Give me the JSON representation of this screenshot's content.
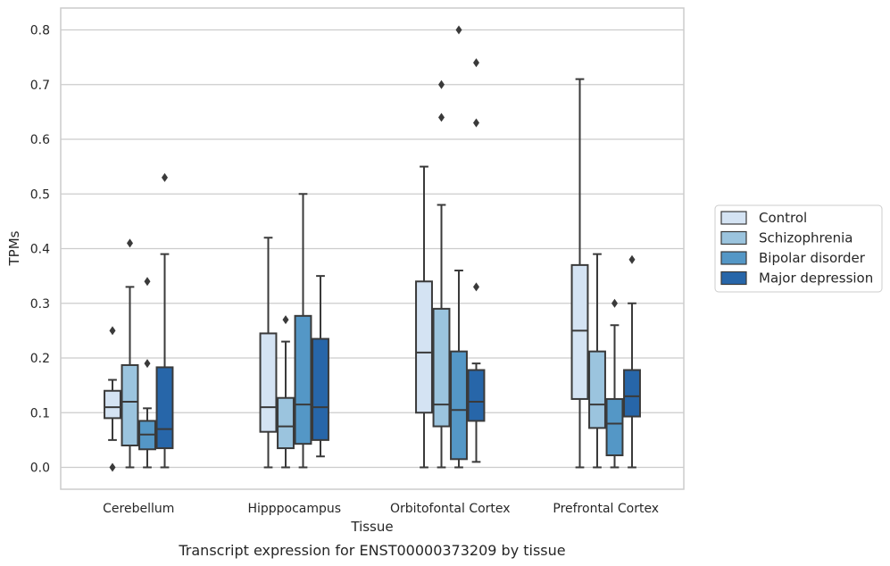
{
  "chart_data": {
    "type": "boxplot",
    "caption": "Transcript expression for ENST00000373209 by tissue",
    "xlabel": "Tissue",
    "ylabel": "TPMs",
    "ylim": [
      -0.04,
      0.84
    ],
    "yticks": [
      0.0,
      0.1,
      0.2,
      0.3,
      0.4,
      0.5,
      0.6,
      0.7,
      0.8
    ],
    "ytick_labels": [
      "0.0",
      "0.1",
      "0.2",
      "0.3",
      "0.4",
      "0.5",
      "0.6",
      "0.7",
      "0.8"
    ],
    "grid": true,
    "legend_position": "right",
    "categories": [
      "Cerebellum",
      "Hipppocampus",
      "Orbitofontal Cortex",
      "Prefrontal Cortex"
    ],
    "series": [
      {
        "name": "Control",
        "color": "#d4e3f3",
        "boxes": [
          {
            "whislo": 0.05,
            "q1": 0.09,
            "med": 0.11,
            "q3": 0.14,
            "whishi": 0.16,
            "fliers": [
              0.25,
              0.0
            ]
          },
          {
            "whislo": 0.0,
            "q1": 0.065,
            "med": 0.11,
            "q3": 0.245,
            "whishi": 0.42,
            "fliers": []
          },
          {
            "whislo": 0.0,
            "q1": 0.1,
            "med": 0.21,
            "q3": 0.34,
            "whishi": 0.55,
            "fliers": []
          },
          {
            "whislo": 0.0,
            "q1": 0.125,
            "med": 0.25,
            "q3": 0.37,
            "whishi": 0.71,
            "fliers": []
          }
        ]
      },
      {
        "name": "Schizophrenia",
        "color": "#9bc4de",
        "boxes": [
          {
            "whislo": 0.0,
            "q1": 0.04,
            "med": 0.12,
            "q3": 0.187,
            "whishi": 0.33,
            "fliers": [
              0.41
            ]
          },
          {
            "whislo": 0.0,
            "q1": 0.035,
            "med": 0.075,
            "q3": 0.127,
            "whishi": 0.23,
            "fliers": [
              0.27
            ]
          },
          {
            "whislo": 0.0,
            "q1": 0.075,
            "med": 0.115,
            "q3": 0.29,
            "whishi": 0.48,
            "fliers": [
              0.7,
              0.64
            ]
          },
          {
            "whislo": 0.0,
            "q1": 0.072,
            "med": 0.115,
            "q3": 0.212,
            "whishi": 0.39,
            "fliers": []
          }
        ]
      },
      {
        "name": "Bipolar disorder",
        "color": "#5497c6",
        "boxes": [
          {
            "whislo": 0.0,
            "q1": 0.033,
            "med": 0.06,
            "q3": 0.085,
            "whishi": 0.108,
            "fliers": [
              0.34,
              0.19
            ]
          },
          {
            "whislo": 0.0,
            "q1": 0.043,
            "med": 0.115,
            "q3": 0.277,
            "whishi": 0.5,
            "fliers": []
          },
          {
            "whislo": 0.0,
            "q1": 0.015,
            "med": 0.105,
            "q3": 0.212,
            "whishi": 0.36,
            "fliers": [
              0.8
            ]
          },
          {
            "whislo": 0.0,
            "q1": 0.022,
            "med": 0.08,
            "q3": 0.125,
            "whishi": 0.26,
            "fliers": [
              0.3
            ]
          }
        ]
      },
      {
        "name": "Major depression",
        "color": "#2766a9",
        "boxes": [
          {
            "whislo": 0.0,
            "q1": 0.035,
            "med": 0.07,
            "q3": 0.183,
            "whishi": 0.39,
            "fliers": [
              0.53
            ]
          },
          {
            "whislo": 0.02,
            "q1": 0.05,
            "med": 0.11,
            "q3": 0.235,
            "whishi": 0.35,
            "fliers": []
          },
          {
            "whislo": 0.01,
            "q1": 0.085,
            "med": 0.12,
            "q3": 0.178,
            "whishi": 0.19,
            "fliers": [
              0.74,
              0.63,
              0.33
            ]
          },
          {
            "whislo": 0.0,
            "q1": 0.093,
            "med": 0.13,
            "q3": 0.178,
            "whishi": 0.3,
            "fliers": [
              0.38
            ]
          }
        ]
      }
    ]
  }
}
